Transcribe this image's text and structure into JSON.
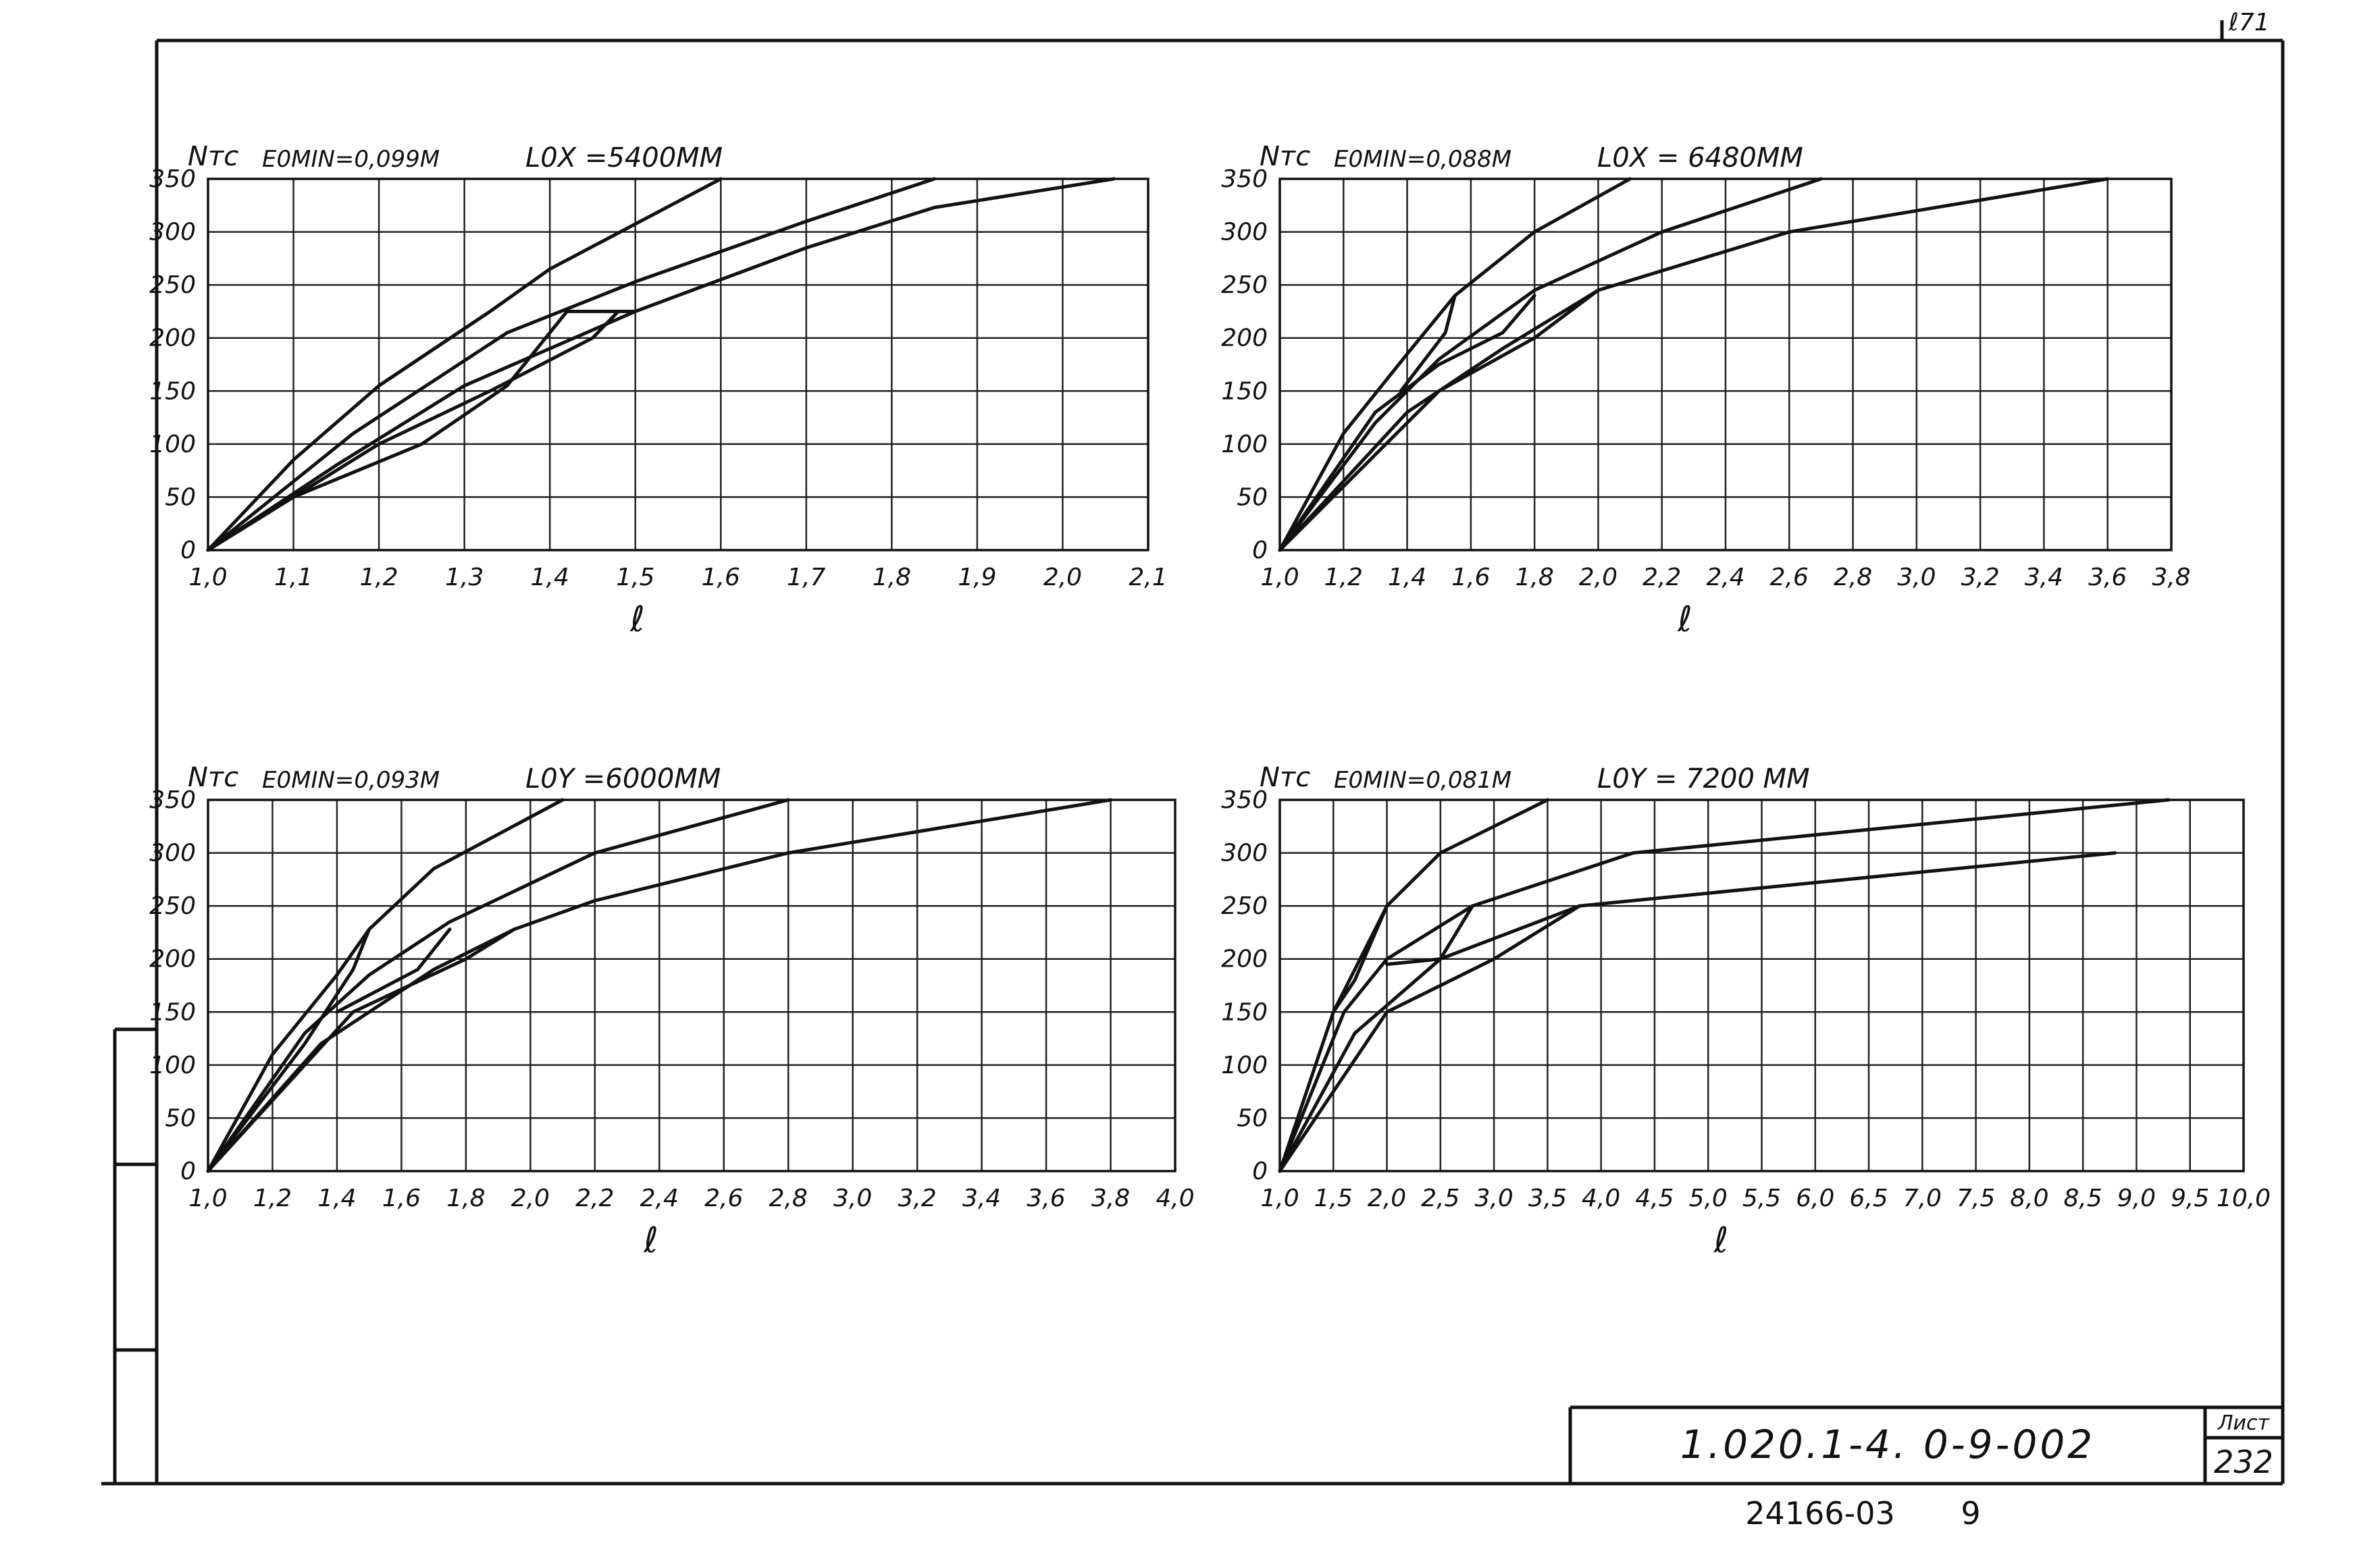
{
  "sheet": {
    "corner_mark": "ℓ71",
    "stamp_code": "1.020.1-4. 0-9-002",
    "sheet_label": "Лист",
    "sheet_number": "232",
    "archive_number": "24166-03",
    "archive_suffix": "9"
  },
  "chart_data": [
    {
      "type": "line",
      "title_emin": "E0MIN=0,099M",
      "title_length": "L0X =5400MM",
      "ylabel": "Nтс",
      "xlabel": "ℓ",
      "xlim": [
        1.0,
        2.1
      ],
      "ylim": [
        0,
        350
      ],
      "x_ticks": [
        "1,0",
        "1,1",
        "1,2",
        "1,3",
        "1,4",
        "1,5",
        "1,6",
        "1,7",
        "1,8",
        "1,9",
        "2,0",
        "2,1"
      ],
      "x_tick_values": [
        1.0,
        1.1,
        1.2,
        1.3,
        1.4,
        1.5,
        1.6,
        1.7,
        1.8,
        1.9,
        2.0,
        2.1
      ],
      "y_ticks": [
        "0",
        "50",
        "100",
        "150",
        "200",
        "250",
        "300",
        "350"
      ],
      "y_tick_values": [
        0,
        50,
        100,
        150,
        200,
        250,
        300,
        350
      ],
      "grid": true,
      "series": [
        {
          "points": [
            [
              1.0,
              0
            ],
            [
              1.1,
              85
            ],
            [
              1.2,
              155
            ],
            [
              1.33,
              225
            ],
            [
              1.4,
              265
            ],
            [
              1.6,
              350
            ]
          ]
        },
        {
          "points": [
            [
              1.0,
              0
            ],
            [
              1.17,
              110
            ],
            [
              1.35,
              205
            ],
            [
              1.5,
              253
            ],
            [
              1.7,
              310
            ],
            [
              1.85,
              350
            ]
          ]
        },
        {
          "points": [
            [
              1.0,
              0
            ],
            [
              1.15,
              80
            ],
            [
              1.3,
              155
            ],
            [
              1.5,
              225
            ],
            [
              1.7,
              285
            ],
            [
              1.85,
              323
            ],
            [
              2.06,
              350
            ]
          ]
        },
        {
          "points": [
            [
              1.0,
              0
            ],
            [
              1.1,
              50
            ],
            [
              1.25,
              100
            ],
            [
              1.35,
              155
            ],
            [
              1.42,
              225
            ],
            [
              1.5,
              225
            ]
          ]
        },
        {
          "points": [
            [
              1.0,
              0
            ],
            [
              1.2,
              100
            ],
            [
              1.33,
              150
            ],
            [
              1.45,
              200
            ],
            [
              1.48,
              225
            ]
          ]
        },
        {
          "points": [
            [
              1.2,
              155
            ],
            [
              1.33,
              225
            ]
          ]
        }
      ]
    },
    {
      "type": "line",
      "title_emin": "E0MIN=0,088M",
      "title_length": "L0X = 6480MM",
      "ylabel": "Nтс",
      "xlabel": "ℓ",
      "xlim": [
        1.0,
        3.8
      ],
      "ylim": [
        0,
        350
      ],
      "x_ticks": [
        "1,0",
        "1,2",
        "1,4",
        "1,6",
        "1,8",
        "2,0",
        "2,2",
        "2,4",
        "2,6",
        "2,8",
        "3,0",
        "3,2",
        "3,4",
        "3,6",
        "3,8"
      ],
      "x_tick_values": [
        1.0,
        1.2,
        1.4,
        1.6,
        1.8,
        2.0,
        2.2,
        2.4,
        2.6,
        2.8,
        3.0,
        3.2,
        3.4,
        3.6,
        3.8
      ],
      "y_ticks": [
        "0",
        "50",
        "100",
        "150",
        "200",
        "250",
        "300",
        "350"
      ],
      "y_tick_values": [
        0,
        50,
        100,
        150,
        200,
        250,
        300,
        350
      ],
      "grid": true,
      "series": [
        {
          "points": [
            [
              1.0,
              0
            ],
            [
              1.2,
              110
            ],
            [
              1.4,
              185
            ],
            [
              1.55,
              240
            ],
            [
              1.8,
              300
            ],
            [
              2.1,
              350
            ]
          ]
        },
        {
          "points": [
            [
              1.0,
              0
            ],
            [
              1.3,
              120
            ],
            [
              1.5,
              180
            ],
            [
              1.8,
              245
            ],
            [
              2.2,
              300
            ],
            [
              2.7,
              350
            ]
          ]
        },
        {
          "points": [
            [
              1.0,
              0
            ],
            [
              1.4,
              130
            ],
            [
              1.7,
              190
            ],
            [
              2.0,
              245
            ],
            [
              2.6,
              300
            ],
            [
              3.6,
              350
            ]
          ]
        },
        {
          "points": [
            [
              1.0,
              0
            ],
            [
              1.3,
              130
            ],
            [
              1.5,
              175
            ],
            [
              1.7,
              205
            ],
            [
              1.8,
              240
            ]
          ]
        },
        {
          "points": [
            [
              1.38,
              150
            ],
            [
              1.52,
              205
            ],
            [
              1.55,
              240
            ]
          ]
        },
        {
          "points": [
            [
              1.0,
              0
            ],
            [
              1.5,
              150
            ],
            [
              1.8,
              200
            ],
            [
              2.0,
              245
            ]
          ]
        }
      ]
    },
    {
      "type": "line",
      "title_emin": "E0MIN=0,093M",
      "title_length": "L0Y =6000MM",
      "ylabel": "Nтс",
      "xlabel": "ℓ",
      "xlim": [
        1.0,
        4.0
      ],
      "ylim": [
        0,
        350
      ],
      "x_ticks": [
        "1,0",
        "1,2",
        "1,4",
        "1,6",
        "1,8",
        "2,0",
        "2,2",
        "2,4",
        "2,6",
        "2,8",
        "3,0",
        "3,2",
        "3,4",
        "3,6",
        "3,8",
        "4,0"
      ],
      "x_tick_values": [
        1.0,
        1.2,
        1.4,
        1.6,
        1.8,
        2.0,
        2.2,
        2.4,
        2.6,
        2.8,
        3.0,
        3.2,
        3.4,
        3.6,
        3.8,
        4.0
      ],
      "y_ticks": [
        "0",
        "50",
        "100",
        "150",
        "200",
        "250",
        "300",
        "350"
      ],
      "y_tick_values": [
        0,
        50,
        100,
        150,
        200,
        250,
        300,
        350
      ],
      "grid": true,
      "series": [
        {
          "points": [
            [
              1.0,
              0
            ],
            [
              1.2,
              110
            ],
            [
              1.4,
              185
            ],
            [
              1.5,
              228
            ],
            [
              1.7,
              285
            ],
            [
              2.1,
              350
            ]
          ]
        },
        {
          "points": [
            [
              1.0,
              0
            ],
            [
              1.3,
              130
            ],
            [
              1.5,
              185
            ],
            [
              1.75,
              235
            ],
            [
              2.2,
              300
            ],
            [
              2.8,
              350
            ]
          ]
        },
        {
          "points": [
            [
              1.0,
              0
            ],
            [
              1.35,
              120
            ],
            [
              1.7,
              190
            ],
            [
              1.95,
              228
            ],
            [
              2.2,
              255
            ],
            [
              2.8,
              300
            ],
            [
              3.8,
              350
            ]
          ]
        },
        {
          "points": [
            [
              1.0,
              0
            ],
            [
              1.3,
              120
            ],
            [
              1.45,
              190
            ],
            [
              1.5,
              228
            ]
          ]
        },
        {
          "points": [
            [
              1.4,
              150
            ],
            [
              1.65,
              190
            ],
            [
              1.75,
              228
            ]
          ]
        },
        {
          "points": [
            [
              1.0,
              0
            ],
            [
              1.45,
              150
            ],
            [
              1.8,
              200
            ],
            [
              1.95,
              228
            ]
          ]
        }
      ]
    },
    {
      "type": "line",
      "title_emin": "E0MIN=0,081M",
      "title_length": "L0Y = 7200 MM",
      "ylabel": "Nтс",
      "xlabel": "ℓ",
      "xlim": [
        1.0,
        10.0
      ],
      "ylim": [
        0,
        350
      ],
      "x_ticks": [
        "1,0",
        "1,5",
        "2,0",
        "2,5",
        "3,0",
        "3,5",
        "4,0",
        "4,5",
        "5,0",
        "5,5",
        "6,0",
        "6,5",
        "7,0",
        "7,5",
        "8,0",
        "8,5",
        "9,0",
        "9,5",
        "10,0"
      ],
      "x_tick_values": [
        1.0,
        1.5,
        2.0,
        2.5,
        3.0,
        3.5,
        4.0,
        4.5,
        5.0,
        5.5,
        6.0,
        6.5,
        7.0,
        7.5,
        8.0,
        8.5,
        9.0,
        9.5,
        10.0
      ],
      "y_ticks": [
        "0",
        "50",
        "100",
        "150",
        "200",
        "250",
        "300",
        "350"
      ],
      "y_tick_values": [
        0,
        50,
        100,
        150,
        200,
        250,
        300,
        350
      ],
      "grid": true,
      "series": [
        {
          "points": [
            [
              1.0,
              0
            ],
            [
              1.5,
              150
            ],
            [
              2.0,
              250
            ],
            [
              2.5,
              300
            ],
            [
              3.5,
              350
            ]
          ]
        },
        {
          "points": [
            [
              1.0,
              0
            ],
            [
              1.6,
              150
            ],
            [
              2.0,
              200
            ],
            [
              2.8,
              250
            ],
            [
              4.3,
              300
            ],
            [
              9.3,
              350
            ]
          ]
        },
        {
          "points": [
            [
              1.0,
              0
            ],
            [
              1.7,
              130
            ],
            [
              2.5,
              200
            ],
            [
              3.8,
              250
            ],
            [
              8.8,
              300
            ]
          ]
        },
        {
          "points": [
            [
              1.0,
              0
            ],
            [
              2.0,
              150
            ],
            [
              3.0,
              200
            ],
            [
              3.8,
              250
            ]
          ]
        },
        {
          "points": [
            [
              1.5,
              150
            ],
            [
              1.7,
              180
            ],
            [
              2.0,
              250
            ]
          ]
        },
        {
          "points": [
            [
              2.0,
              195
            ],
            [
              2.5,
              200
            ],
            [
              2.8,
              250
            ]
          ]
        }
      ]
    }
  ]
}
